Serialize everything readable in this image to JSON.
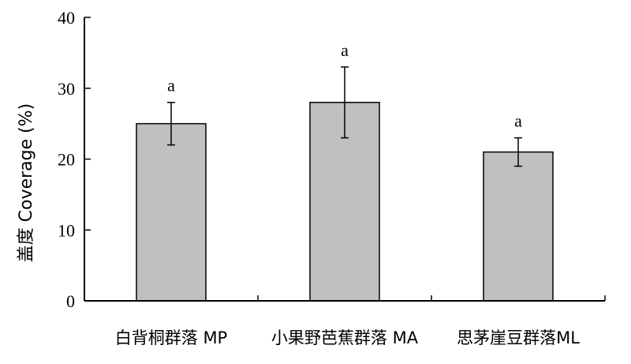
{
  "chart_data": {
    "type": "bar",
    "title": "",
    "xlabel": "",
    "ylabel": "盖度 Coverage (%)",
    "ylim": [
      0,
      40
    ],
    "yticks": [
      0,
      10,
      20,
      30,
      40
    ],
    "grid": false,
    "categories": [
      "白背桐群落 MP",
      "小果野芭蕉群落 MA",
      "思茅崖豆群落ML"
    ],
    "values": [
      25,
      28,
      21
    ],
    "errors": [
      3,
      5,
      2
    ],
    "significance": [
      "a",
      "a",
      "a"
    ],
    "bar_color": "#c0c0c0"
  }
}
